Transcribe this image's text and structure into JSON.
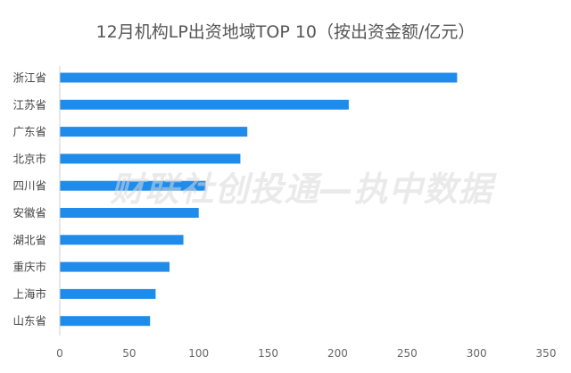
{
  "chart_data": {
    "type": "bar",
    "orientation": "horizontal",
    "title": "12月机构LP出资地域TOP 10（按出资金额/亿元）",
    "categories": [
      "浙江省",
      "江苏省",
      "广东省",
      "北京市",
      "四川省",
      "安徽省",
      "湖北省",
      "重庆市",
      "上海市",
      "山东省"
    ],
    "values": [
      286,
      208,
      135,
      130,
      105,
      100,
      89,
      79,
      69,
      65
    ],
    "xlim": [
      0,
      350
    ],
    "xticks": [
      0,
      50,
      100,
      150,
      200,
      250,
      300,
      350
    ],
    "bar_color": "#1f8ceb",
    "grid": false,
    "legend": "none"
  },
  "watermark": "财联社创投通—执中数据"
}
